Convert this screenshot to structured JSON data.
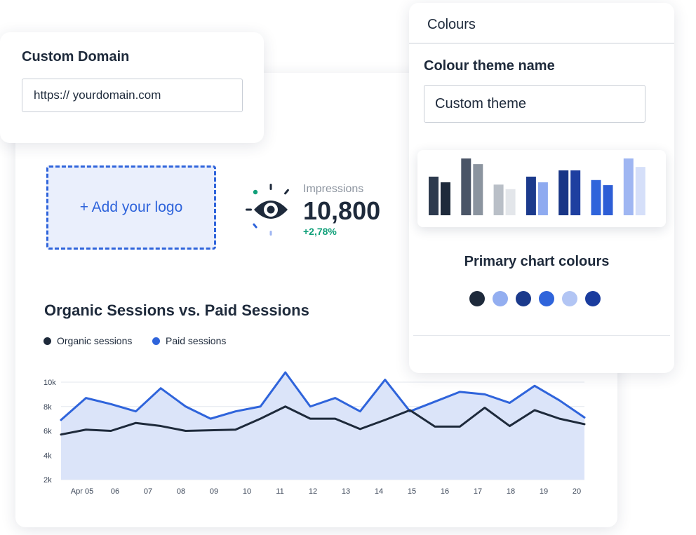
{
  "custom_domain": {
    "title": "Custom Domain",
    "input_value": "https:// yourdomain.com"
  },
  "logo": {
    "label": "+ Add your logo"
  },
  "impressions": {
    "label": "Impressions",
    "value": "10,800",
    "delta": "+2,78%",
    "icon": "eye-icon"
  },
  "sessions_chart": {
    "title": "Organic Sessions vs. Paid Sessions",
    "legend": {
      "organic": "Organic sessions",
      "paid": "Paid sessions"
    }
  },
  "colours_panel": {
    "header": "Colours",
    "theme_label": "Colour theme name",
    "theme_value": "Custom theme",
    "primary_label": "Primary chart colours",
    "swatches": [
      "#1e2a3b",
      "#93aef0",
      "#1b3a8c",
      "#2f64db",
      "#b2c5f4",
      "#1a3c9e"
    ],
    "preview_bars": [
      {
        "colors": [
          "#2d3a4e",
          "#1e2a3b"
        ],
        "values": [
          0.68,
          0.58
        ]
      },
      {
        "colors": [
          "#4a5567",
          "#8b949f"
        ],
        "values": [
          1.0,
          0.9
        ]
      },
      {
        "colors": [
          "#b9bfc7",
          "#e3e6ea"
        ],
        "values": [
          0.54,
          0.46
        ]
      },
      {
        "colors": [
          "#1b3a8c",
          "#8eaaf0"
        ],
        "values": [
          0.68,
          0.58
        ]
      },
      {
        "colors": [
          "#183586",
          "#1e3fa0"
        ],
        "values": [
          0.79,
          0.79
        ]
      },
      {
        "colors": [
          "#2f64db",
          "#2d5ed6"
        ],
        "values": [
          0.62,
          0.53
        ]
      },
      {
        "colors": [
          "#9fb6f2",
          "#d5dff9"
        ],
        "values": [
          1.0,
          0.85
        ]
      }
    ]
  },
  "colors": {
    "accent": "#2f64db",
    "dark": "#1e2a3b",
    "positive": "#11a07a",
    "area_fill": "#dbe4f9"
  },
  "chart_data": {
    "type": "area",
    "x": [
      "Apr 05",
      "06",
      "07",
      "08",
      "09",
      "10",
      "11",
      "12",
      "13",
      "14",
      "15",
      "16",
      "17",
      "18",
      "19",
      "20"
    ],
    "y_ticks": [
      "10k",
      "8k",
      "6k",
      "4k",
      "2k"
    ],
    "ylim": [
      2000,
      10000
    ],
    "grid": true,
    "legend_position": "top-left",
    "series": [
      {
        "name": "Organic sessions",
        "color": "#1e2a3b",
        "points": [
          [
            0,
            5700
          ],
          [
            1,
            6100
          ],
          [
            2,
            6000
          ],
          [
            3,
            6650
          ],
          [
            4,
            6400
          ],
          [
            5,
            6000
          ],
          [
            6,
            6050
          ],
          [
            7,
            6100
          ],
          [
            8,
            7000
          ],
          [
            9,
            8000
          ],
          [
            10,
            7000
          ],
          [
            11,
            7000
          ],
          [
            12,
            6150
          ],
          [
            13,
            6900
          ],
          [
            14,
            7700
          ],
          [
            15,
            6350
          ],
          [
            16,
            6350
          ],
          [
            17,
            7900
          ],
          [
            18,
            6400
          ],
          [
            19,
            7700
          ],
          [
            20,
            7000
          ],
          [
            21,
            6550
          ]
        ]
      },
      {
        "name": "Paid sessions",
        "color": "#2f64db",
        "points": [
          [
            0,
            6900
          ],
          [
            1,
            8700
          ],
          [
            2,
            8200
          ],
          [
            3,
            7600
          ],
          [
            4,
            9500
          ],
          [
            5,
            8000
          ],
          [
            6,
            7000
          ],
          [
            7,
            7600
          ],
          [
            8,
            8000
          ],
          [
            9,
            10800
          ],
          [
            10,
            8000
          ],
          [
            11,
            8700
          ],
          [
            12,
            7600
          ],
          [
            13,
            10200
          ],
          [
            14,
            7600
          ],
          [
            15,
            8400
          ],
          [
            16,
            9200
          ],
          [
            17,
            9000
          ],
          [
            18,
            8300
          ],
          [
            19,
            9700
          ],
          [
            20,
            8500
          ],
          [
            21,
            7100
          ]
        ]
      }
    ]
  }
}
